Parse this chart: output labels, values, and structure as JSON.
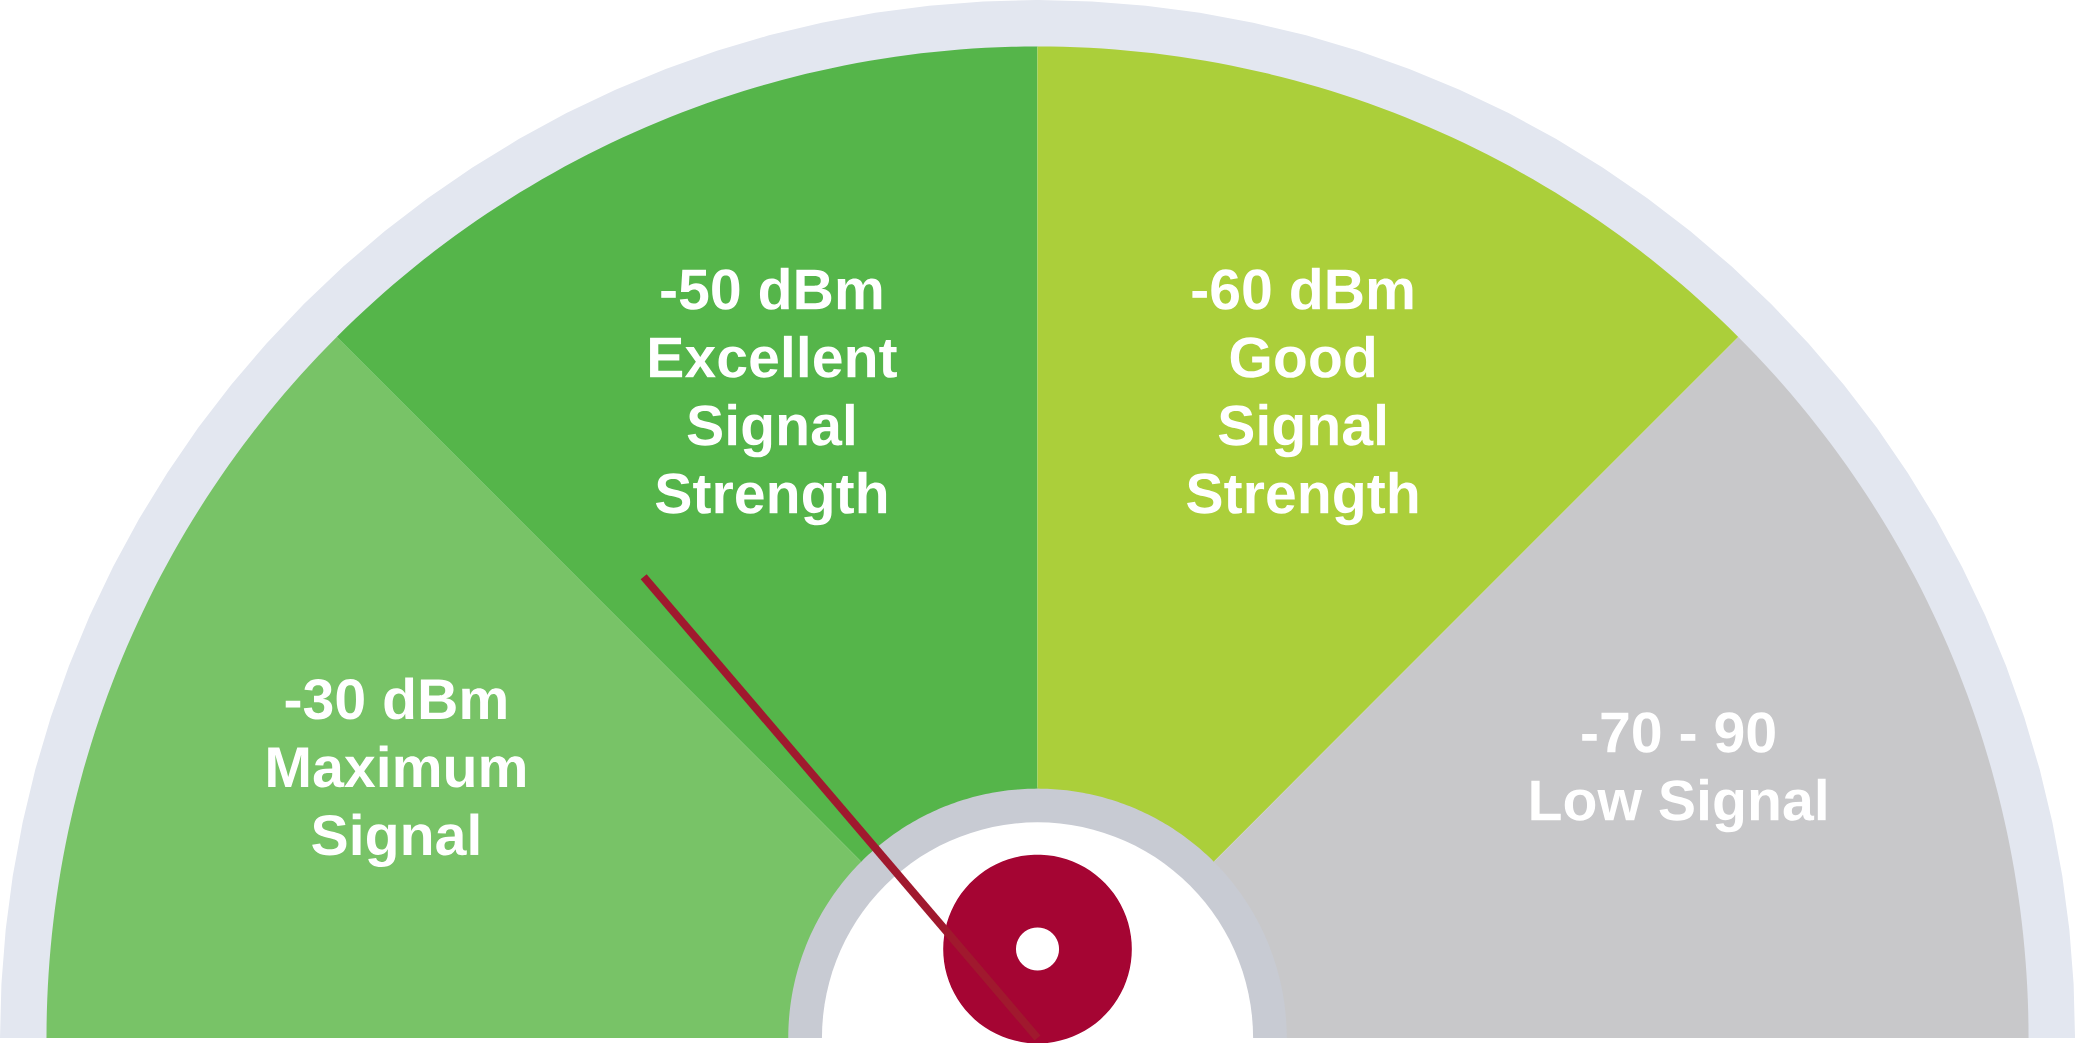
{
  "chart_data": {
    "type": "donut",
    "categories": [
      "-30 dBm Maximum Signal",
      "-50 dBm Excellent Signal Strength",
      "-60 dBm Good Signal Strength",
      "-70 - 90 Low Signal"
    ],
    "values": [
      25,
      25,
      25,
      25
    ],
    "colors": [
      "#78c367",
      "#55b54a",
      "#abcf3a",
      "#c8c8ca"
    ],
    "needle": "-50 dBm Excellent Signal Strength"
  }
}
